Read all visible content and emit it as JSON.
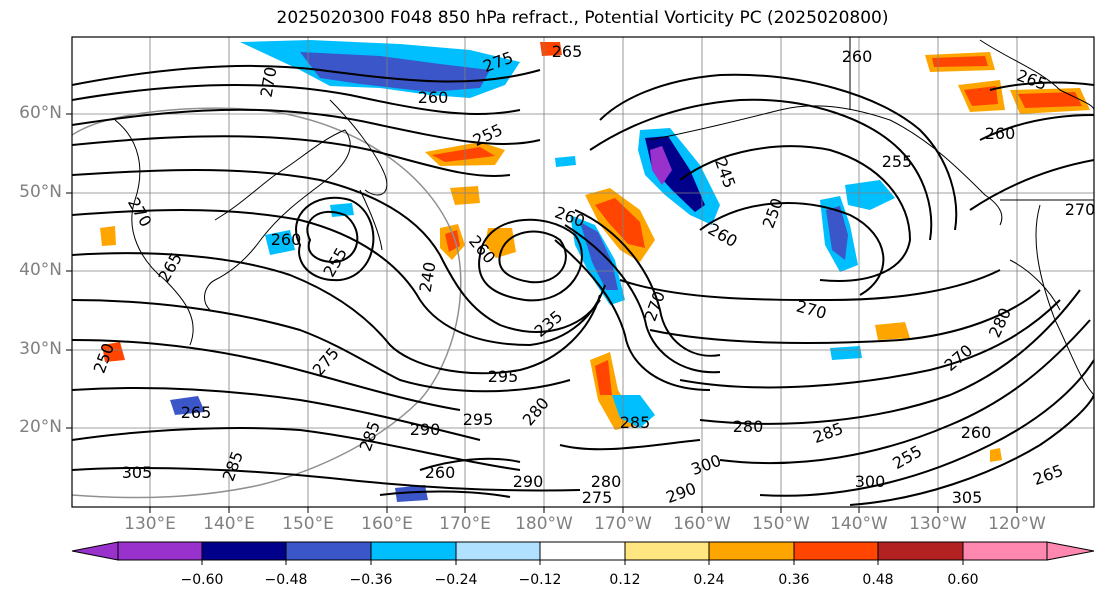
{
  "title": "2025020300 F048 850 hPa refract., Potential Vorticity PC (2025020800)",
  "lat_labels": [
    "60°N",
    "50°N",
    "40°N",
    "30°N",
    "20°N"
  ],
  "lon_labels": [
    "130°E",
    "140°E",
    "150°E",
    "160°E",
    "170°E",
    "180°W",
    "170°W",
    "160°W",
    "150°W",
    "140°W",
    "130°W",
    "120°W"
  ],
  "colorbar": {
    "ticks": [
      "−0.60",
      "−0.48",
      "−0.36",
      "−0.24",
      "−0.12",
      "0.12",
      "0.24",
      "0.36",
      "0.48",
      "0.60"
    ],
    "colors": [
      "#9932cc",
      "#00008b",
      "#3a56c8",
      "#00bfff",
      "#b0e2ff",
      "#ffffff",
      "#ffe680",
      "#ffa500",
      "#ff4500",
      "#b22222",
      "#ff88b0"
    ]
  },
  "contour_labels": [
    "270",
    "275",
    "265",
    "260",
    "255",
    "245",
    "260",
    "255",
    "260",
    "265",
    "270",
    "260",
    "250",
    "260",
    "240",
    "255",
    "260",
    "235",
    "265",
    "270",
    "250",
    "275",
    "265",
    "295",
    "270",
    "280",
    "280",
    "290",
    "295",
    "290",
    "285",
    "305",
    "300",
    "280",
    "270",
    "285",
    "285",
    "280",
    "290",
    "300",
    "260",
    "255",
    "305",
    "275",
    "265",
    "270",
    "260",
    "285",
    "260"
  ]
}
